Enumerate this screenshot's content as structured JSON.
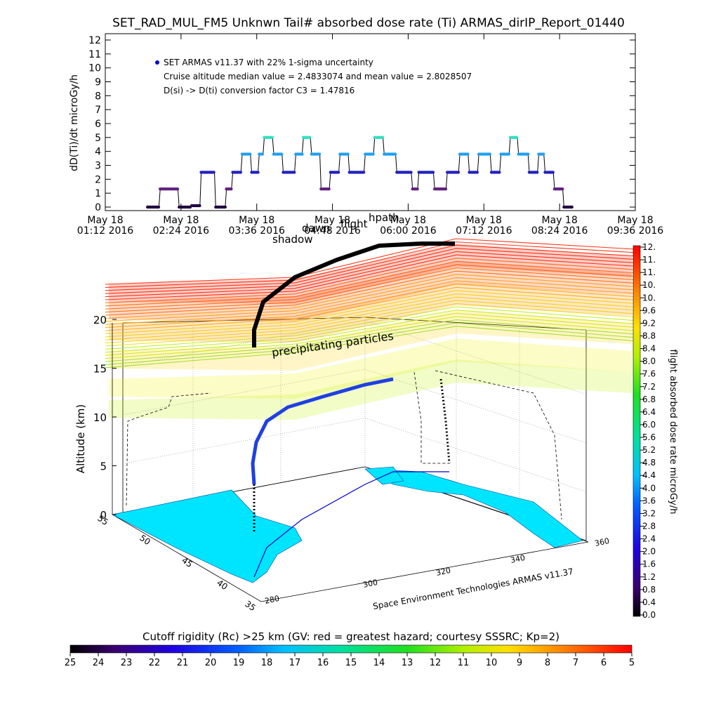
{
  "page_title": "SET_RAD_MUL_FM5 Unknwn Tail#  absorbed dose rate (Ti) ARMAS_dirIP_Report_01440",
  "chart_data": [
    {
      "type": "line",
      "ylabel": "dD(Ti)/dt microGy/h",
      "ylim": [
        0,
        12
      ],
      "y_ticks": [
        "0",
        "1",
        "2",
        "3",
        "4",
        "5",
        "6",
        "7",
        "8",
        "9",
        "10",
        "11",
        "12"
      ],
      "x_ticks": [
        [
          "May 18",
          "01:12 2016"
        ],
        [
          "May 18",
          "02:24 2016"
        ],
        [
          "May 18",
          "03:36 2016"
        ],
        [
          "May 18",
          "04:48 2016"
        ],
        [
          "May 18",
          "06:00 2016"
        ],
        [
          "May 18",
          "07:12 2016"
        ],
        [
          "May 18",
          "08:24 2016"
        ],
        [
          "May 18",
          "09:36 2016"
        ]
      ],
      "x_hours": [
        1.2,
        2.4,
        3.6,
        4.8,
        6.0,
        7.2,
        8.4,
        9.6
      ],
      "legend": {
        "series": "SET ARMAS v11.37 with 22% 1-sigma uncertainty",
        "note1": "Cruise altitude median value = 2.4833074 and mean value = 2.8028507",
        "note2": "D(si) -> D(ti) conversion factor C3 = 1.47816"
      },
      "series": [
        {
          "x_hours": [
            1.87,
            2.05,
            2.07,
            2.35,
            2.37,
            2.55,
            2.57,
            2.7,
            2.72,
            2.93,
            2.95,
            3.1,
            3.12,
            3.2,
            3.22,
            3.35,
            3.37,
            3.5,
            3.52,
            3.62,
            3.64,
            3.7,
            3.72,
            3.85,
            3.87,
            4.0,
            4.02,
            4.2,
            4.22,
            4.32,
            4.34,
            4.45,
            4.47,
            4.6,
            4.62,
            4.75,
            4.77,
            4.9,
            4.92,
            5.05,
            5.07,
            5.3,
            5.32,
            5.45,
            5.47,
            5.6,
            5.62,
            5.8,
            5.82,
            6.05,
            6.07,
            6.15,
            6.17,
            6.4,
            6.42,
            6.6,
            6.62,
            6.8,
            6.82,
            6.95,
            6.97,
            7.1,
            7.12,
            7.3,
            7.32,
            7.45,
            7.47,
            7.6,
            7.62,
            7.73,
            7.75,
            7.9,
            7.92,
            8.05,
            8.07,
            8.15,
            8.17,
            8.3,
            8.32,
            8.45,
            8.47,
            8.6
          ],
          "y": [
            0,
            0,
            1.3,
            1.3,
            0,
            0,
            0.1,
            0.1,
            2.5,
            2.5,
            0,
            0,
            1.3,
            1.3,
            2.5,
            2.5,
            3.8,
            3.8,
            2.5,
            2.5,
            3.8,
            3.8,
            5,
            5,
            3.8,
            3.8,
            2.5,
            2.5,
            3.8,
            3.8,
            5,
            5,
            3.8,
            3.8,
            1.3,
            1.3,
            2.5,
            2.5,
            3.8,
            3.8,
            2.5,
            2.5,
            3.8,
            3.8,
            5,
            5,
            3.8,
            3.8,
            2.5,
            2.5,
            1.3,
            1.3,
            2.5,
            2.5,
            1.3,
            1.3,
            2.5,
            2.5,
            3.8,
            3.8,
            2.5,
            2.5,
            3.8,
            3.8,
            2.5,
            2.5,
            3.8,
            3.8,
            5,
            5,
            3.8,
            3.8,
            2.5,
            2.5,
            3.8,
            3.8,
            2.5,
            2.5,
            1.3,
            1.3,
            0,
            0
          ]
        }
      ]
    },
    {
      "type": "heatmap",
      "ylabel": "Altitude (km)",
      "z_ticks": [
        "0",
        "5",
        "10",
        "15",
        "20"
      ],
      "x_ticks": [
        "280",
        "300",
        "320",
        "340",
        "360"
      ],
      "y_ticks": [
        "35",
        "40",
        "45",
        "50",
        "55"
      ],
      "annotations": [
        "precipitating particles",
        "shadow",
        "dawn",
        "flight",
        "hpath"
      ],
      "credit": "Space Environment Technologies ARMAS v11.37",
      "colorbar_label": "flight absorbed dose rate microGy/h",
      "colorbar_ticks": [
        "0.0",
        "0.4",
        "0.8",
        "1.2",
        "1.6",
        "2.0",
        "2.4",
        "2.8",
        "3.2",
        "3.6",
        "4.0",
        "4.4",
        "4.8",
        "5.2",
        "5.6",
        "6.0",
        "6.4",
        "6.8",
        "7.2",
        "7.6",
        "8.0",
        "8.4",
        "8.8",
        "9.2",
        "9.6",
        "10.",
        "10.",
        "11.",
        "11.",
        "12."
      ]
    }
  ],
  "bottom_bar": {
    "title": "Cutoff rigidity (Rc) >25 km (GV: red = greatest hazard; courtesy SSSRC; Kp=2)",
    "ticks": [
      "25",
      "24",
      "23",
      "22",
      "21",
      "20",
      "19",
      "18",
      "17",
      "16",
      "15",
      "14",
      "13",
      "12",
      "11",
      "10",
      "9",
      "8",
      "7",
      "6",
      "5"
    ]
  },
  "colors": {
    "accent": "#0000cc",
    "trace": "#000000",
    "ground": "#00e5ff"
  }
}
